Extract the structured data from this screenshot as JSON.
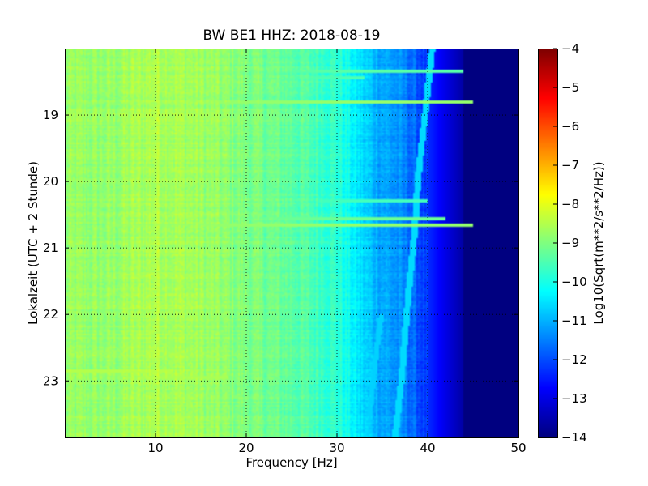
{
  "chart_data": {
    "type": "heatmap",
    "title": "BW BE1 HHZ: 2018-08-19",
    "xlabel": "Frequency [Hz]",
    "ylabel": "Lokalzeit (UTC + 2 Stunde)",
    "xlim": [
      0,
      50
    ],
    "ylim": [
      18.0,
      23.85
    ],
    "y_inverted": true,
    "x_ticks": [
      10,
      20,
      30,
      40,
      50
    ],
    "x_tick_labels": [
      "10",
      "20",
      "30",
      "40",
      "50"
    ],
    "y_ticks": [
      19,
      20,
      21,
      22,
      23
    ],
    "y_tick_labels": [
      "19",
      "20",
      "21",
      "22",
      "23"
    ],
    "grid": true,
    "colormap": "jet",
    "colorbar": {
      "label": "Log10(Sqrt(m**2/s**2/Hz))",
      "range": [
        -14,
        -4
      ],
      "ticks": [
        -4,
        -5,
        -6,
        -7,
        -8,
        -9,
        -10,
        -11,
        -12,
        -13,
        -14
      ],
      "tick_labels": [
        "−4",
        "−5",
        "−6",
        "−7",
        "−8",
        "−9",
        "−10",
        "−11",
        "−12",
        "−13",
        "−14"
      ]
    },
    "spectrum_profile": {
      "frequency_hz": [
        0,
        5,
        10,
        15,
        20,
        25,
        30,
        32,
        34,
        36,
        38,
        40,
        42,
        43.5,
        45,
        50
      ],
      "log10_amplitude": [
        -8.8,
        -8.8,
        -8.5,
        -8.7,
        -9.0,
        -9.3,
        -9.8,
        -10.4,
        -10.9,
        -11.2,
        -11.6,
        -12.3,
        -13.0,
        -13.5,
        -14,
        -14
      ]
    },
    "drifting_line": {
      "time_hours": [
        18.0,
        18.5,
        19.0,
        19.5,
        20.0,
        20.5,
        21.0,
        21.5,
        22.0,
        22.5,
        23.0,
        23.5,
        23.85
      ],
      "frequency_hz": [
        40.5,
        40.1,
        39.7,
        39.3,
        38.9,
        38.7,
        38.4,
        38.0,
        37.7,
        37.4,
        37.1,
        36.7,
        36.4
      ]
    },
    "secondary_line": {
      "time_hours": [
        22.0,
        22.5,
        23.0,
        23.5,
        23.85
      ],
      "frequency_hz": [
        34.9,
        34.4,
        34.0,
        33.6,
        33.2
      ]
    },
    "horizontal_bands": [
      {
        "time_hours": 18.35,
        "fmin_hz": 20,
        "fmax_hz": 44,
        "level": -9.4
      },
      {
        "time_hours": 18.45,
        "fmin_hz": 20,
        "fmax_hz": 33,
        "level": -9.5
      },
      {
        "time_hours": 18.8,
        "fmin_hz": 10,
        "fmax_hz": 45,
        "level": -8.8
      },
      {
        "time_hours": 20.3,
        "fmin_hz": 28,
        "fmax_hz": 40,
        "level": -9.6
      },
      {
        "time_hours": 20.55,
        "fmin_hz": 5,
        "fmax_hz": 42,
        "level": -9.2
      },
      {
        "time_hours": 20.65,
        "fmin_hz": 5,
        "fmax_hz": 45,
        "level": -8.8
      },
      {
        "time_hours": 22.85,
        "fmin_hz": 0,
        "fmax_hz": 12,
        "level": -8.5
      },
      {
        "time_hours": 22.95,
        "fmin_hz": 8,
        "fmax_hz": 18,
        "level": -8.6
      }
    ]
  }
}
